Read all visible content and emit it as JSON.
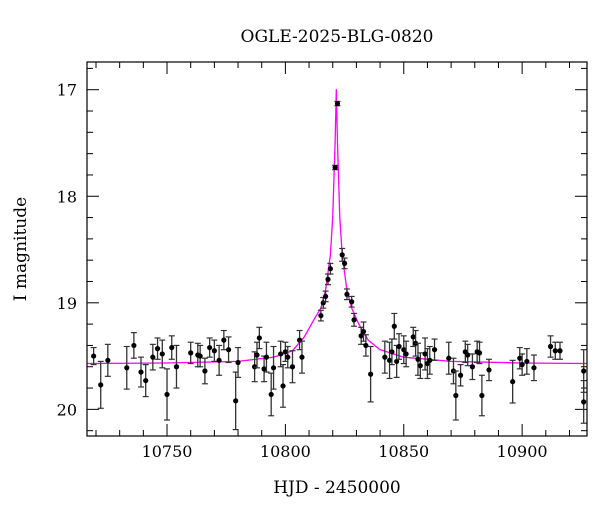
{
  "chart_data": {
    "type": "scatter",
    "title": "OGLE-2025-BLG-0820",
    "xlabel": "HJD - 2450000",
    "ylabel": "I magnitude",
    "xlim": [
      10716.2,
      10927.4
    ],
    "ylim": [
      20.25,
      16.74
    ],
    "y_inverted": true,
    "x_ticks": [
      10750,
      10800,
      10850,
      10900
    ],
    "y_ticks": [
      17,
      18,
      19,
      20
    ],
    "grid": false,
    "colors": {
      "points": "#000000",
      "errorbars": "#333333",
      "model": "#ff00ff"
    },
    "points": [
      [
        10719,
        19.5,
        0.08
      ],
      [
        10722,
        19.77,
        0.22
      ],
      [
        10725,
        19.54,
        0.15
      ],
      [
        10733,
        19.61,
        0.2
      ],
      [
        10736,
        19.4,
        0.12
      ],
      [
        10739,
        19.65,
        0.14
      ],
      [
        10741,
        19.73,
        0.15
      ],
      [
        10744,
        19.51,
        0.12
      ],
      [
        10746,
        19.43,
        0.1
      ],
      [
        10748,
        19.48,
        0.13
      ],
      [
        10750,
        19.86,
        0.24
      ],
      [
        10752,
        19.42,
        0.11
      ],
      [
        10754,
        19.6,
        0.2
      ],
      [
        10760,
        19.47,
        0.1
      ],
      [
        10763,
        19.49,
        0.11
      ],
      [
        10764,
        19.5,
        0.1
      ],
      [
        10766,
        19.64,
        0.12
      ],
      [
        10768,
        19.42,
        0.09
      ],
      [
        10770,
        19.45,
        0.1
      ],
      [
        10772,
        19.54,
        0.14
      ],
      [
        10774,
        19.35,
        0.09
      ],
      [
        10776,
        19.44,
        0.12
      ],
      [
        10779,
        19.92,
        0.27
      ],
      [
        10780,
        19.56,
        0.14
      ],
      [
        10787,
        19.6,
        0.14
      ],
      [
        10788,
        19.49,
        0.12
      ],
      [
        10789,
        19.33,
        0.1
      ],
      [
        10791,
        19.62,
        0.12
      ],
      [
        10792,
        19.51,
        0.14
      ],
      [
        10794,
        19.86,
        0.2
      ],
      [
        10795,
        19.61,
        0.2
      ],
      [
        10798,
        19.48,
        0.12
      ],
      [
        10799,
        19.78,
        0.2
      ],
      [
        10800,
        19.46,
        0.09
      ],
      [
        10801,
        19.51,
        0.1
      ],
      [
        10803,
        19.6,
        0.15
      ],
      [
        10806,
        19.35,
        0.09
      ],
      [
        10807,
        19.51,
        0.15
      ],
      [
        10815,
        19.12,
        0.05
      ],
      [
        10816,
        19.0,
        0.05
      ],
      [
        10817,
        18.94,
        0.05
      ],
      [
        10818,
        18.78,
        0.05
      ],
      [
        10819,
        18.68,
        0.05
      ],
      [
        10821,
        17.73,
        0.02
      ],
      [
        10822,
        17.13,
        0.02
      ],
      [
        10824,
        18.55,
        0.06
      ],
      [
        10825,
        18.63,
        0.05
      ],
      [
        10826,
        18.92,
        0.05
      ],
      [
        10828,
        18.99,
        0.05
      ],
      [
        10829,
        19.16,
        0.06
      ],
      [
        10832,
        19.31,
        0.08
      ],
      [
        10833,
        19.27,
        0.09
      ],
      [
        10834,
        19.4,
        0.1
      ],
      [
        10836,
        19.67,
        0.26
      ],
      [
        10842,
        19.51,
        0.15
      ],
      [
        10844,
        19.54,
        0.17
      ],
      [
        10845,
        19.46,
        0.12
      ],
      [
        10846,
        19.22,
        0.12
      ],
      [
        10847,
        19.55,
        0.15
      ],
      [
        10848,
        19.41,
        0.12
      ],
      [
        10850,
        19.44,
        0.13
      ],
      [
        10851,
        19.48,
        0.12
      ],
      [
        10854,
        19.32,
        0.09
      ],
      [
        10855,
        19.38,
        0.12
      ],
      [
        10856,
        19.53,
        0.15
      ],
      [
        10857,
        19.59,
        0.12
      ],
      [
        10859,
        19.48,
        0.15
      ],
      [
        10860,
        19.57,
        0.14
      ],
      [
        10861,
        19.54,
        0.13
      ],
      [
        10863,
        19.44,
        0.1
      ],
      [
        10869,
        19.52,
        0.15
      ],
      [
        10871,
        19.64,
        0.12
      ],
      [
        10872,
        19.87,
        0.23
      ],
      [
        10874,
        19.68,
        0.1
      ],
      [
        10876,
        19.46,
        0.1
      ],
      [
        10877,
        19.49,
        0.1
      ],
      [
        10879,
        19.6,
        0.12
      ],
      [
        10881,
        19.46,
        0.1
      ],
      [
        10882,
        19.47,
        0.1
      ],
      [
        10883,
        19.87,
        0.19
      ],
      [
        10886,
        19.63,
        0.1
      ],
      [
        10896,
        19.74,
        0.2
      ],
      [
        10899,
        19.52,
        0.1
      ],
      [
        10900,
        19.58,
        0.1
      ],
      [
        10902,
        19.55,
        0.12
      ],
      [
        10905,
        19.61,
        0.12
      ],
      [
        10912,
        19.41,
        0.1
      ],
      [
        10914,
        19.45,
        0.08
      ],
      [
        10916,
        19.45,
        0.08
      ],
      [
        10926,
        19.93,
        0.2
      ],
      [
        10926,
        19.64,
        0.2
      ]
    ],
    "model": [
      [
        10716,
        19.57
      ],
      [
        10750,
        19.565
      ],
      [
        10780,
        19.55
      ],
      [
        10795,
        19.51
      ],
      [
        10803,
        19.45
      ],
      [
        10808,
        19.32
      ],
      [
        10812,
        19.16
      ],
      [
        10815,
        19.05
      ],
      [
        10817,
        18.88
      ],
      [
        10819,
        18.55
      ],
      [
        10820,
        18.2
      ],
      [
        10821,
        17.5
      ],
      [
        10821.5,
        17.0
      ],
      [
        10822,
        17.5
      ],
      [
        10823,
        18.2
      ],
      [
        10824,
        18.55
      ],
      [
        10826,
        18.88
      ],
      [
        10828,
        19.05
      ],
      [
        10831,
        19.2
      ],
      [
        10835,
        19.35
      ],
      [
        10840,
        19.44
      ],
      [
        10850,
        19.51
      ],
      [
        10870,
        19.55
      ],
      [
        10900,
        19.565
      ],
      [
        10927.4,
        19.57
      ]
    ]
  }
}
